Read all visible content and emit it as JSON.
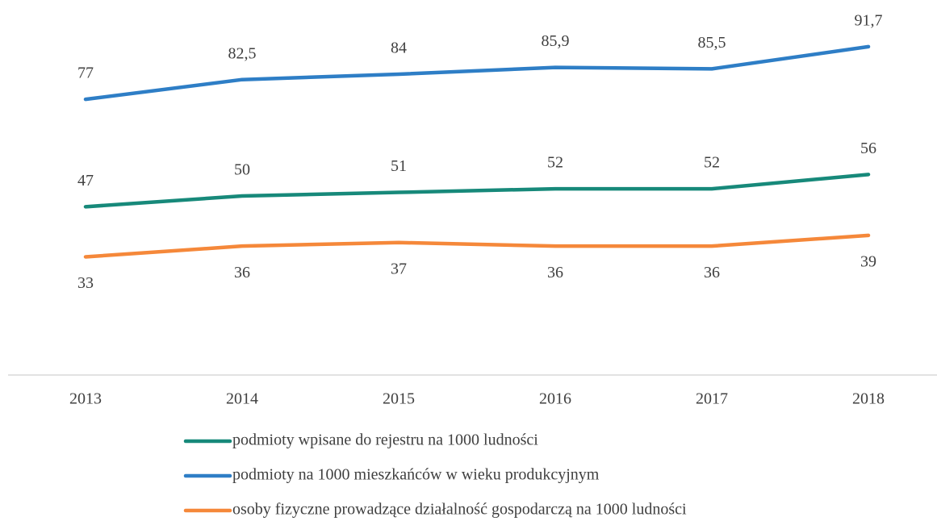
{
  "chart_data": {
    "type": "line",
    "categories": [
      "2013",
      "2014",
      "2015",
      "2016",
      "2017",
      "2018"
    ],
    "series": [
      {
        "name": "podmioty wpisane do rejestru na 1000 ludności",
        "color": "#17897a",
        "label_position": "above",
        "values": [
          47,
          50,
          51,
          52,
          52,
          56
        ]
      },
      {
        "name": "podmioty na 1000 mieszkańców w wieku produkcyjnym",
        "color": "#2e7ec6",
        "label_position": "above",
        "values": [
          77,
          82.5,
          84,
          85.9,
          85.5,
          91.7
        ],
        "value_labels": [
          "77",
          "82,5",
          "84",
          "85,9",
          "85,5",
          "91,7"
        ]
      },
      {
        "name": "osoby fizyczne prowadzące działalność gospodarczą na 1000 ludności",
        "color": "#f5883a",
        "label_position": "below",
        "values": [
          33,
          36,
          37,
          36,
          36,
          39
        ]
      }
    ],
    "ylim": [
      0,
      100
    ]
  }
}
